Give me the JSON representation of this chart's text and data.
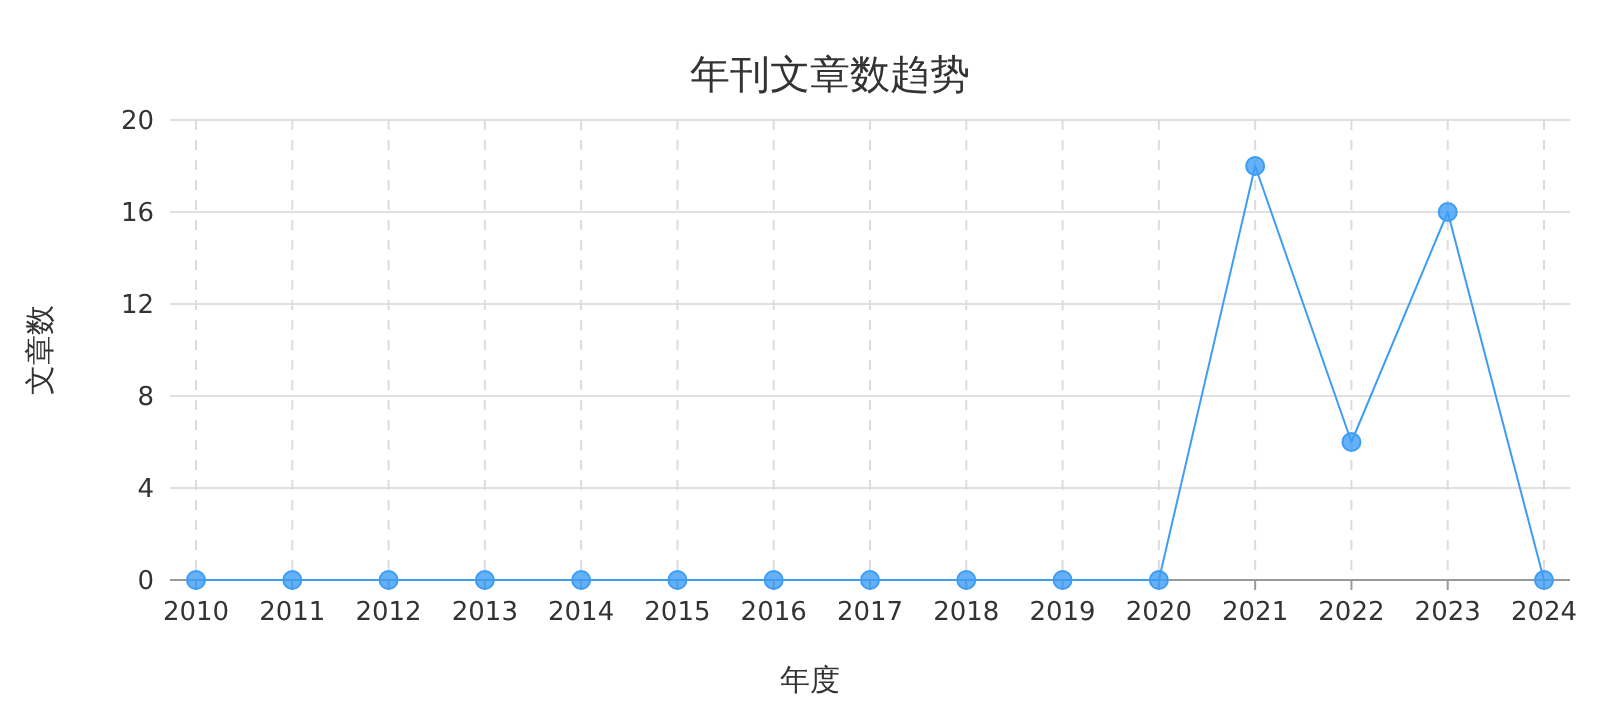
{
  "chart_data": {
    "type": "line",
    "title": "年刊文章数趋势",
    "xlabel": "年度",
    "ylabel": "文章数",
    "categories": [
      "2010",
      "2011",
      "2012",
      "2013",
      "2014",
      "2015",
      "2016",
      "2017",
      "2018",
      "2019",
      "2020",
      "2021",
      "2022",
      "2023",
      "2024"
    ],
    "series": [
      {
        "color": "#3d9df5",
        "values": [
          0,
          0,
          0,
          0,
          0,
          0,
          0,
          0,
          0,
          0,
          0,
          18,
          6,
          16,
          0
        ]
      }
    ],
    "ylim": [
      0,
      20
    ],
    "yticks": [
      0,
      4,
      8,
      12,
      16,
      20
    ],
    "grid": true,
    "marker": "circle",
    "line_style": "solid"
  }
}
